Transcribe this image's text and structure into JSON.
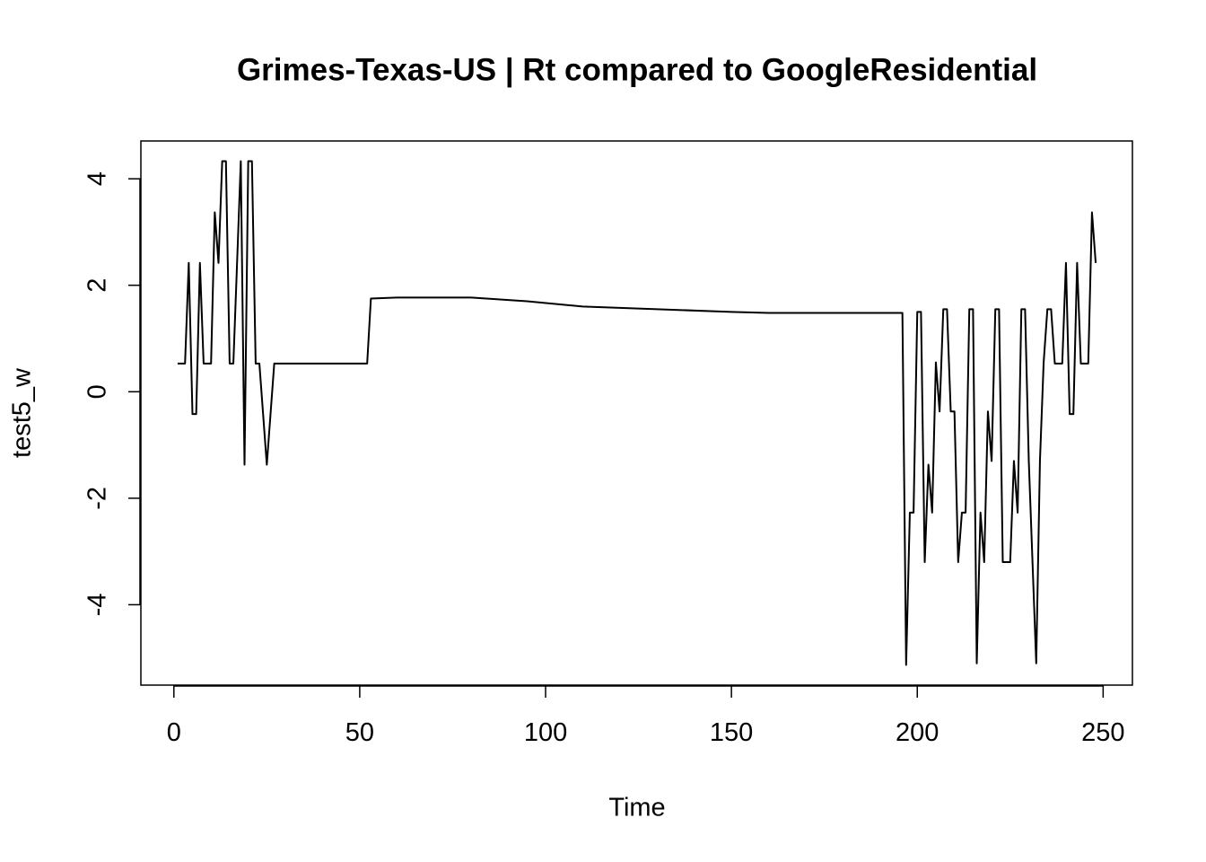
{
  "chart_data": {
    "type": "line",
    "title": "Grimes-Texas-US | Rt compared to GoogleResidential",
    "x_label": "Time",
    "y_label": "test5_w",
    "x": [
      1,
      2,
      3,
      4,
      5,
      6,
      7,
      8,
      9,
      10,
      11,
      12,
      13,
      14,
      15,
      16,
      17,
      18,
      19,
      20,
      21,
      22,
      23,
      24,
      25,
      26,
      27,
      52,
      53,
      60,
      80,
      95,
      110,
      130,
      150,
      160,
      196,
      197,
      198,
      199,
      200,
      201,
      202,
      203,
      204,
      205,
      206,
      207,
      208,
      209,
      210,
      211,
      212,
      213,
      214,
      215,
      216,
      217,
      218,
      219,
      220,
      221,
      222,
      223,
      224,
      225,
      226,
      227,
      228,
      229,
      230,
      231,
      232,
      233,
      234,
      235,
      236,
      237,
      238,
      239,
      240,
      241,
      242,
      243,
      244,
      245,
      246,
      247,
      248
    ],
    "series": [
      {
        "name": "test5_w",
        "color": "#000000",
        "values": [
          0.53,
          0.53,
          0.53,
          2.42,
          -0.42,
          -0.42,
          2.42,
          0.53,
          0.53,
          0.53,
          3.37,
          2.42,
          4.33,
          4.33,
          0.53,
          0.53,
          2.42,
          4.33,
          -1.37,
          4.33,
          4.33,
          0.53,
          0.53,
          -0.42,
          -1.37,
          -0.42,
          0.53,
          0.53,
          1.75,
          1.77,
          1.77,
          1.7,
          1.6,
          1.55,
          1.5,
          1.48,
          1.48,
          -5.13,
          -2.27,
          -2.27,
          1.5,
          1.5,
          -3.2,
          -1.37,
          -2.27,
          0.55,
          -0.37,
          1.55,
          1.55,
          -0.37,
          -0.37,
          -3.2,
          -2.27,
          -2.27,
          1.55,
          1.55,
          -5.1,
          -2.27,
          -3.2,
          -0.37,
          -1.3,
          1.55,
          1.55,
          -3.2,
          -3.2,
          -3.2,
          -1.3,
          -2.27,
          1.55,
          1.55,
          -1.3,
          -3.2,
          -5.1,
          -1.3,
          0.55,
          1.55,
          1.55,
          0.53,
          0.53,
          0.53,
          2.42,
          -0.42,
          -0.42,
          2.42,
          0.53,
          0.53,
          0.53,
          3.37,
          2.42
        ]
      }
    ],
    "xlim": [
      -8.88,
      257.88
    ],
    "xticks": [
      0,
      50,
      100,
      150,
      200,
      250
    ],
    "ylim": [
      -5.51,
      4.71
    ],
    "yticks": [
      -4,
      -2,
      0,
      2,
      4
    ]
  }
}
